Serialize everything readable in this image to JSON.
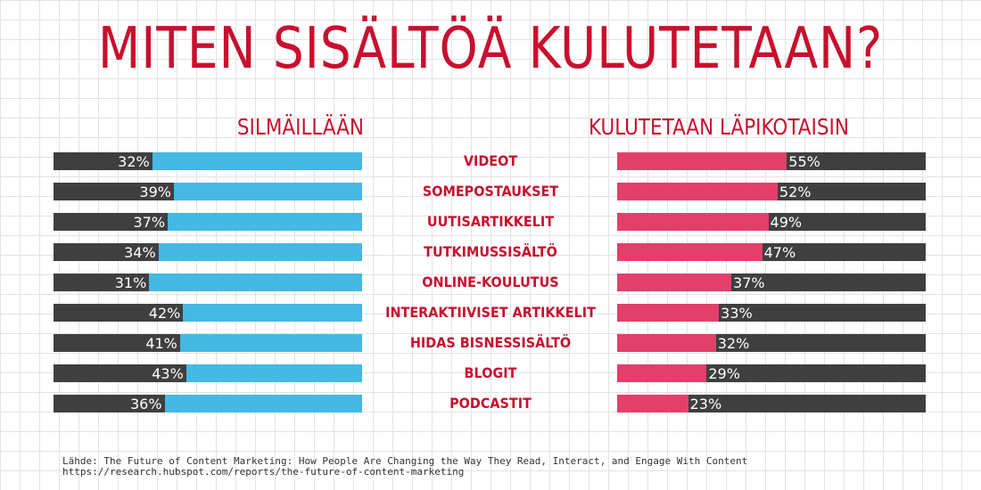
{
  "title": "MITEN SISÄLTÖÄ KULUTETAAN?",
  "colors": {
    "title": "#c8102e",
    "category": "#c8102e",
    "dark": "#3f3f3f",
    "skim": "#43b9e3",
    "thorough": "#e33f6b"
  },
  "chart_data": {
    "type": "bar",
    "left_series_label": "SILMÄILLÄÄN",
    "right_series_label": "KULUTETAAN LÄPIKOTAISIN",
    "categories": [
      "VIDEOT",
      "SOMEPOSTAUKSET",
      "UUTISARTIKKELIT",
      "TUTKIMUSSISÄLTÖ",
      "ONLINE-KOULUTUS",
      "INTERAKTIIVISET ARTIKKELIT",
      "HIDAS BISNESSISÄLTÖ",
      "BLOGIT",
      "PODCASTIT"
    ],
    "series": [
      {
        "name": "SILMÄILLÄÄN",
        "values": [
          32,
          39,
          37,
          34,
          31,
          42,
          41,
          43,
          36
        ]
      },
      {
        "name": "KULUTETAAN LÄPIKOTAISIN",
        "values": [
          55,
          52,
          49,
          47,
          37,
          33,
          32,
          29,
          23
        ]
      }
    ],
    "value_labels_left": [
      "32%",
      "39%",
      "37%",
      "34%",
      "31%",
      "42%",
      "41%",
      "43%",
      "36%"
    ],
    "value_labels_right": [
      "55%",
      "52%",
      "49%",
      "47%",
      "37%",
      "33%",
      "32%",
      "29%",
      "23%"
    ],
    "ylim": [
      0,
      100
    ]
  },
  "source": {
    "line1": "Lähde: The Future of Content Marketing: How People Are Changing the Way They Read, Interact, and Engage With Content",
    "line2": "https://research.hubspot.com/reports/the-future-of-content-marketing"
  }
}
